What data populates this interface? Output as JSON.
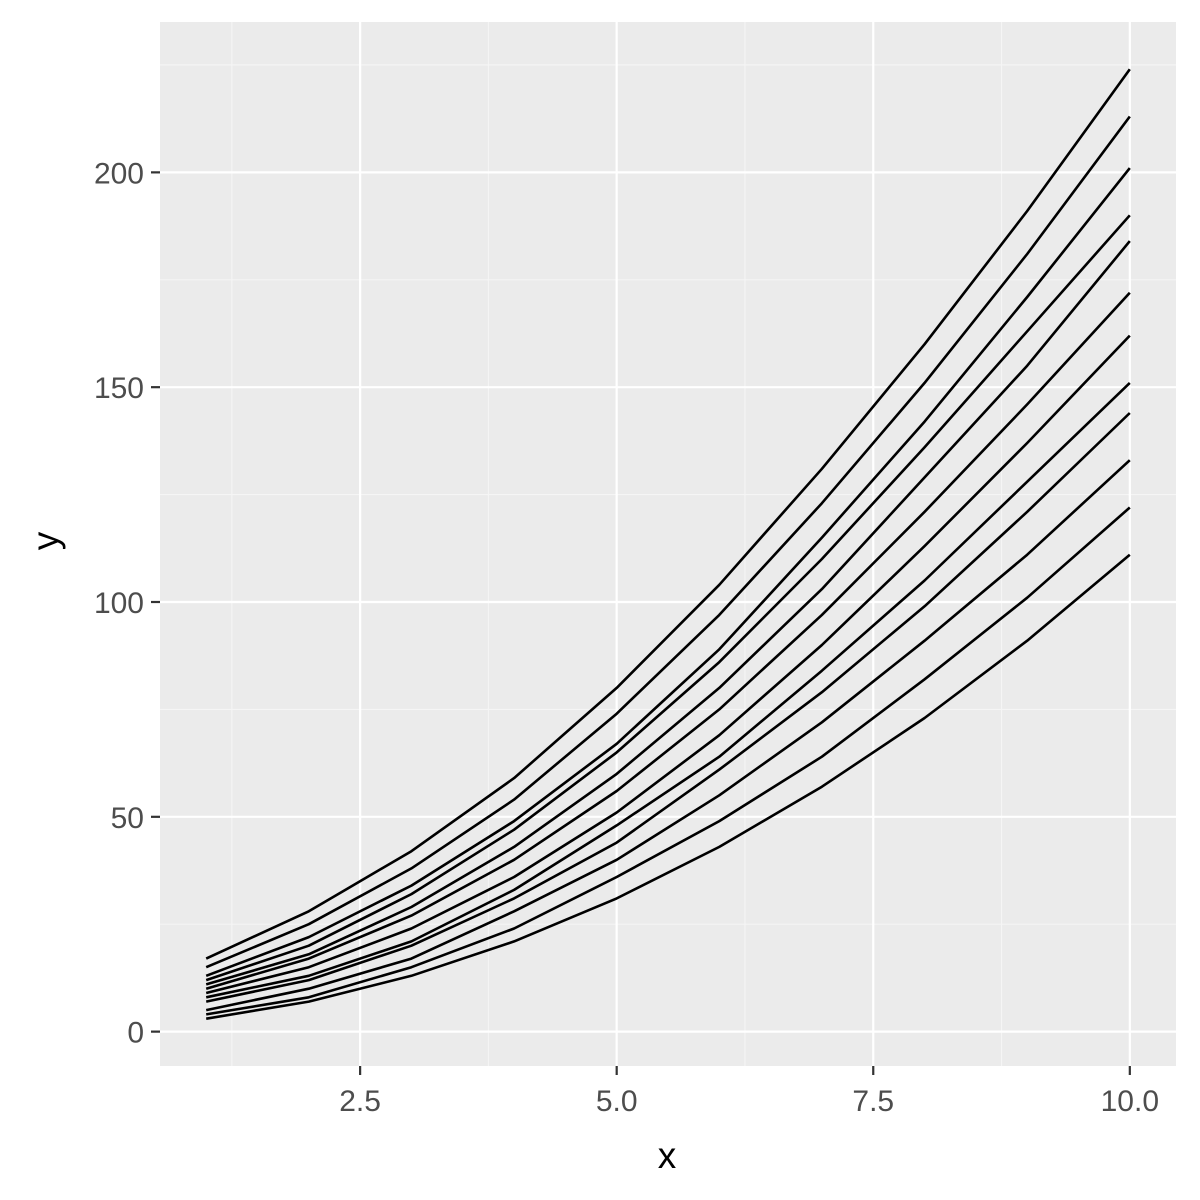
{
  "chart_data": {
    "type": "line",
    "title": "",
    "xlabel": "x",
    "ylabel": "y",
    "xlim": [
      0.55,
      10.45
    ],
    "ylim": [
      -8,
      235
    ],
    "x_ticks": [
      {
        "value": 2.5,
        "label": "2.5"
      },
      {
        "value": 5.0,
        "label": "5.0"
      },
      {
        "value": 7.5,
        "label": "7.5"
      },
      {
        "value": 10.0,
        "label": "10.0"
      }
    ],
    "y_ticks": [
      {
        "value": 0,
        "label": "0"
      },
      {
        "value": 50,
        "label": "50"
      },
      {
        "value": 100,
        "label": "100"
      },
      {
        "value": 150,
        "label": "150"
      },
      {
        "value": 200,
        "label": "200"
      }
    ],
    "grid": true,
    "legend": "none",
    "x": [
      1,
      2,
      3,
      4,
      5,
      6,
      7,
      8,
      9,
      10
    ],
    "series": [
      {
        "values": [
          3,
          7,
          13,
          21,
          31,
          43,
          57,
          73,
          91,
          111
        ]
      },
      {
        "values": [
          4,
          8,
          15,
          24,
          36,
          49,
          64,
          82,
          101,
          122
        ]
      },
      {
        "values": [
          5,
          10,
          17,
          28,
          40,
          55,
          72,
          91,
          111,
          133
        ]
      },
      {
        "values": [
          7,
          12,
          20,
          31,
          44,
          61,
          79,
          99,
          121,
          144
        ]
      },
      {
        "values": [
          8,
          13,
          21,
          33,
          48,
          64,
          84,
          105,
          128,
          151
        ]
      },
      {
        "values": [
          9,
          15,
          24,
          36,
          51,
          69,
          90,
          113,
          137,
          162
        ]
      },
      {
        "values": [
          10,
          17,
          27,
          40,
          56,
          75,
          97,
          121,
          146,
          172
        ]
      },
      {
        "values": [
          11,
          18,
          29,
          43,
          60,
          80,
          103,
          129,
          155,
          184
        ]
      },
      {
        "values": [
          12,
          20,
          32,
          47,
          65,
          86,
          110,
          136,
          163,
          190
        ]
      },
      {
        "values": [
          13,
          22,
          34,
          49,
          67,
          89,
          115,
          142,
          171,
          201
        ]
      },
      {
        "values": [
          15,
          25,
          38,
          54,
          74,
          97,
          123,
          151,
          181,
          213
        ]
      },
      {
        "values": [
          17,
          28,
          42,
          59,
          80,
          104,
          131,
          160,
          191,
          224
        ]
      }
    ]
  },
  "colors": {
    "panel_background": "#ebebeb",
    "grid_major": "#ffffff",
    "grid_minor": "#f5f5f5",
    "line": "#000000",
    "tick_text": "#4d4d4d",
    "axis_title": "#000000"
  }
}
